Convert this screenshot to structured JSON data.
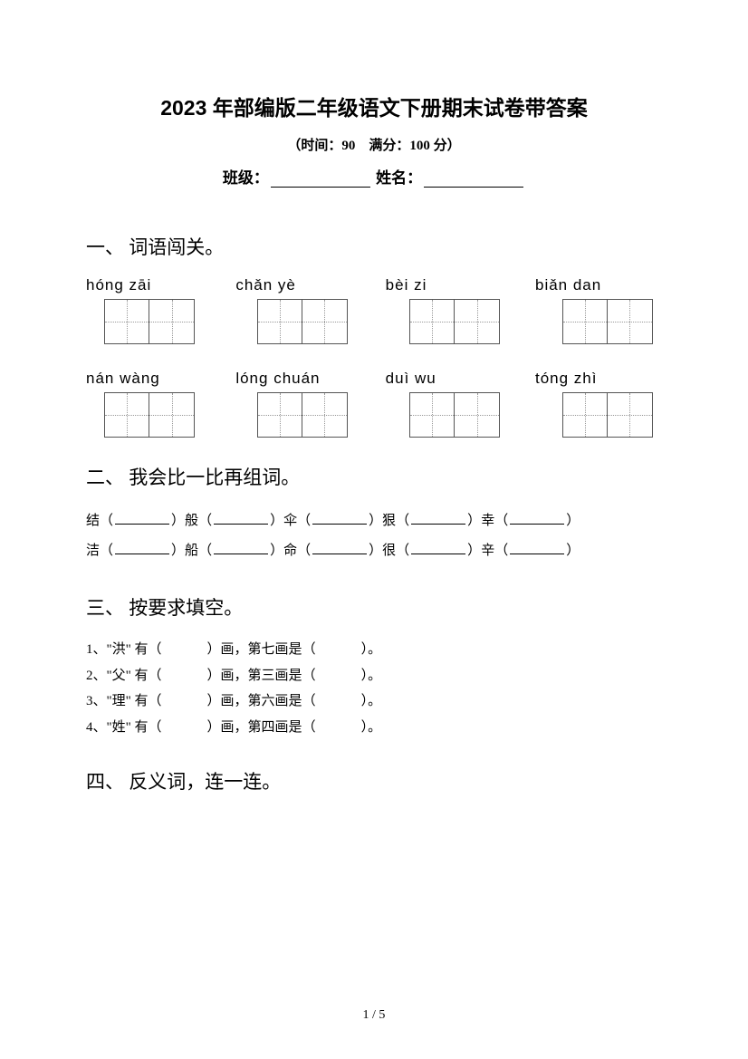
{
  "title": "2023 年部编版二年级语文下册期末试卷带答案",
  "subtitle": "（时间：90　满分：100 分）",
  "info": {
    "class_label": "班级：",
    "name_label": "姓名："
  },
  "section1": {
    "title": "一、 词语闯关。",
    "pinyin_rows": [
      [
        "hóng  zāi",
        "chǎn  yè",
        "bèi  zi",
        "biǎn  dan"
      ],
      [
        "nán  wàng",
        "lóng  chuán",
        "duì  wu",
        "tóng  zhì"
      ]
    ]
  },
  "section2": {
    "title": "二、 我会比一比再组词。",
    "pairs": [
      [
        "结",
        "般",
        "伞",
        "狠",
        "幸"
      ],
      [
        "洁",
        "船",
        "命",
        "很",
        "辛"
      ]
    ]
  },
  "section3": {
    "title": "三、 按要求填空。",
    "items": [
      {
        "num": "1、",
        "char": "洪",
        "stroke": "第七画是"
      },
      {
        "num": "2、",
        "char": "父",
        "stroke": "第三画是"
      },
      {
        "num": "3、",
        "char": "理",
        "stroke": "第六画是"
      },
      {
        "num": "4、",
        "char": "姓",
        "stroke": "第四画是"
      }
    ]
  },
  "section4": {
    "title": "四、 反义词，连一连。"
  },
  "page_number": "1 / 5"
}
